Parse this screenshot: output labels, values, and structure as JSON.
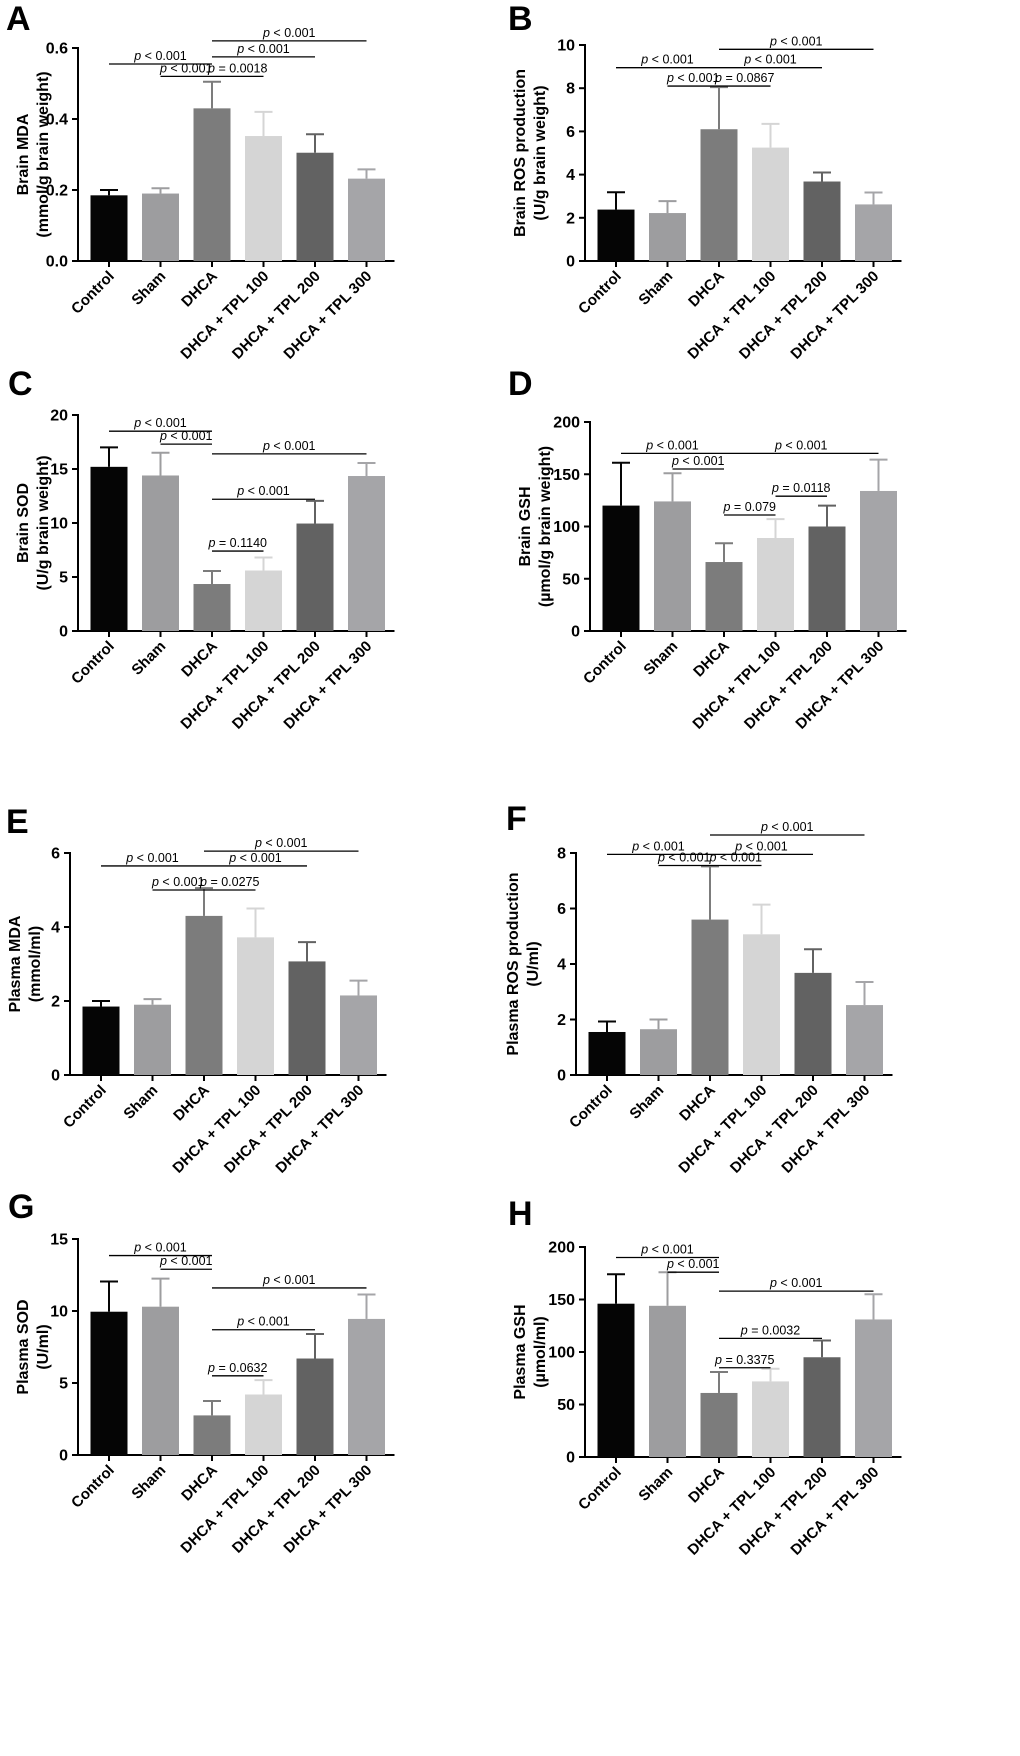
{
  "categories": [
    "Control",
    "Sham",
    "DHCA",
    "DHCA + TPL 100",
    "DHCA + TPL 200",
    "DHCA + TPL 300"
  ],
  "colors": [
    "#050505",
    "#9d9d9f",
    "#7c7c7c",
    "#d5d5d5",
    "#626262",
    "#a5a5a8"
  ],
  "chart_data": [
    {
      "id": "A",
      "panel": "A",
      "type": "bar",
      "ylabel_lines": [
        "Brain MDA",
        "(mmol/g brain weight)"
      ],
      "ylim": [
        0,
        0.6
      ],
      "ticks": [
        0.0,
        0.2,
        0.4,
        0.6
      ],
      "tick_labels": [
        "0.0",
        "0.2",
        "0.4",
        "0.6"
      ],
      "values": [
        0.185,
        0.19,
        0.43,
        0.352,
        0.305,
        0.232
      ],
      "errors": [
        0.015,
        0.015,
        0.075,
        0.068,
        0.052,
        0.026
      ],
      "annotations": [
        {
          "from": 0,
          "to": 2,
          "y": 0.555,
          "text": "< 0.001"
        },
        {
          "from": 1,
          "to": 2,
          "y": 0.52,
          "text": "< 0.001"
        },
        {
          "from": 2,
          "to": 5,
          "y": 0.62,
          "text": "< 0.001"
        },
        {
          "from": 2,
          "to": 4,
          "y": 0.575,
          "text": "< 0.001"
        },
        {
          "from": 2,
          "to": 3,
          "y": 0.52,
          "text": "= 0.0018"
        }
      ]
    },
    {
      "id": "B",
      "panel": "B",
      "type": "bar",
      "ylabel_lines": [
        "Brain ROS production",
        "(U/g brain weight)"
      ],
      "ylim": [
        0,
        10
      ],
      "ticks": [
        0,
        2,
        4,
        6,
        8,
        10
      ],
      "tick_labels": [
        "0",
        "2",
        "4",
        "6",
        "8",
        "10"
      ],
      "values": [
        2.38,
        2.22,
        6.1,
        5.25,
        3.68,
        2.62
      ],
      "errors": [
        0.8,
        0.55,
        1.95,
        1.1,
        0.42,
        0.55
      ],
      "annotations": [
        {
          "from": 0,
          "to": 2,
          "y": 8.95,
          "text": "< 0.001"
        },
        {
          "from": 1,
          "to": 2,
          "y": 8.1,
          "text": "< 0.001"
        },
        {
          "from": 2,
          "to": 5,
          "y": 9.8,
          "text": "< 0.001"
        },
        {
          "from": 2,
          "to": 4,
          "y": 8.95,
          "text": "< 0.001"
        },
        {
          "from": 2,
          "to": 3,
          "y": 8.1,
          "text": "= 0.0867"
        }
      ]
    },
    {
      "id": "C",
      "panel": "C",
      "type": "bar",
      "ylabel_lines": [
        "Brain SOD",
        "(U/g brain weight)"
      ],
      "ylim": [
        0,
        20
      ],
      "ticks": [
        0,
        5,
        10,
        15,
        20
      ],
      "tick_labels": [
        "0",
        "5",
        "10",
        "15",
        "20"
      ],
      "values": [
        15.2,
        14.4,
        4.35,
        5.6,
        9.95,
        14.35
      ],
      "errors": [
        1.8,
        2.1,
        1.2,
        1.2,
        2.1,
        1.2
      ],
      "annotations": [
        {
          "from": 0,
          "to": 2,
          "y": 18.5,
          "text": "< 0.001"
        },
        {
          "from": 1,
          "to": 2,
          "y": 17.3,
          "text": "< 0.001"
        },
        {
          "from": 2,
          "to": 5,
          "y": 16.4,
          "text": "< 0.001"
        },
        {
          "from": 2,
          "to": 4,
          "y": 12.2,
          "text": "< 0.001"
        },
        {
          "from": 2,
          "to": 3,
          "y": 7.4,
          "text": "= 0.1140"
        }
      ]
    },
    {
      "id": "D",
      "panel": "D",
      "type": "bar",
      "ylabel_lines": [
        "Brain GSH",
        "(µmol/g brain weight)"
      ],
      "ylim": [
        0,
        200
      ],
      "ticks": [
        0,
        50,
        100,
        150,
        200
      ],
      "tick_labels": [
        "0",
        "50",
        "100",
        "150",
        "200"
      ],
      "values": [
        120,
        124,
        66,
        89,
        100,
        134
      ],
      "errors": [
        41,
        27,
        18,
        18,
        20,
        30
      ],
      "annotations": [
        {
          "from": 0,
          "to": 2,
          "y": 170,
          "text": "< 0.001"
        },
        {
          "from": 1,
          "to": 2,
          "y": 155,
          "text": "< 0.001"
        },
        {
          "from": 2,
          "to": 5,
          "y": 170,
          "text": "< 0.001"
        },
        {
          "from": 3,
          "to": 4,
          "y": 129,
          "text": "= 0.0118"
        },
        {
          "from": 2,
          "to": 3,
          "y": 111,
          "text": "= 0.079"
        }
      ]
    },
    {
      "id": "E",
      "panel": "E",
      "type": "bar",
      "ylabel_lines": [
        "Plasma MDA",
        "(mmol/ml)"
      ],
      "ylim": [
        0,
        6
      ],
      "ticks": [
        0,
        2,
        4,
        6
      ],
      "tick_labels": [
        "0",
        "2",
        "4",
        "6"
      ],
      "values": [
        1.85,
        1.9,
        4.3,
        3.72,
        3.07,
        2.15
      ],
      "errors": [
        0.15,
        0.15,
        0.75,
        0.78,
        0.52,
        0.4
      ],
      "annotations": [
        {
          "from": 0,
          "to": 2,
          "y": 5.65,
          "text": "< 0.001"
        },
        {
          "from": 1,
          "to": 2,
          "y": 5.0,
          "text": "< 0.001"
        },
        {
          "from": 2,
          "to": 5,
          "y": 6.05,
          "text": "< 0.001"
        },
        {
          "from": 2,
          "to": 4,
          "y": 5.65,
          "text": "< 0.001"
        },
        {
          "from": 2,
          "to": 3,
          "y": 5.0,
          "text": "= 0.0275"
        }
      ]
    },
    {
      "id": "F",
      "panel": "F",
      "type": "bar",
      "ylabel_lines": [
        "Plasma ROS production",
        "(U/ml)"
      ],
      "ylim": [
        0,
        8
      ],
      "ticks": [
        0,
        2,
        4,
        6,
        8
      ],
      "tick_labels": [
        "0",
        "2",
        "4",
        "6",
        "8"
      ],
      "values": [
        1.55,
        1.65,
        5.6,
        5.07,
        3.68,
        2.52
      ],
      "errors": [
        0.38,
        0.35,
        1.92,
        1.07,
        0.85,
        0.83
      ],
      "annotations": [
        {
          "from": 0,
          "to": 2,
          "y": 7.95,
          "text": "< 0.001"
        },
        {
          "from": 1,
          "to": 2,
          "y": 7.55,
          "text": "< 0.001"
        },
        {
          "from": 2,
          "to": 5,
          "y": 8.65,
          "text": "< 0.001"
        },
        {
          "from": 2,
          "to": 4,
          "y": 7.95,
          "text": "< 0.001"
        },
        {
          "from": 2,
          "to": 3,
          "y": 7.55,
          "text": "< 0.001"
        }
      ]
    },
    {
      "id": "G",
      "panel": "G",
      "type": "bar",
      "ylabel_lines": [
        "Plasma SOD",
        "(U/ml)"
      ],
      "ylim": [
        0,
        15
      ],
      "ticks": [
        0,
        5,
        10,
        15
      ],
      "tick_labels": [
        "0",
        "5",
        "10",
        "15"
      ],
      "values": [
        9.95,
        10.3,
        2.75,
        4.2,
        6.7,
        9.45
      ],
      "errors": [
        2.1,
        1.95,
        1.0,
        1.0,
        1.7,
        1.7
      ],
      "annotations": [
        {
          "from": 0,
          "to": 2,
          "y": 13.85,
          "text": "< 0.001"
        },
        {
          "from": 1,
          "to": 2,
          "y": 12.9,
          "text": "< 0.001"
        },
        {
          "from": 2,
          "to": 5,
          "y": 11.6,
          "text": "< 0.001"
        },
        {
          "from": 2,
          "to": 4,
          "y": 8.7,
          "text": "< 0.001"
        },
        {
          "from": 2,
          "to": 3,
          "y": 5.5,
          "text": "= 0.0632"
        }
      ]
    },
    {
      "id": "H",
      "panel": "H",
      "type": "bar",
      "ylabel_lines": [
        "Plasma GSH",
        "(µmol/ml)"
      ],
      "ylim": [
        0,
        200
      ],
      "ticks": [
        0,
        50,
        100,
        150,
        200
      ],
      "tick_labels": [
        "0",
        "50",
        "100",
        "150",
        "200"
      ],
      "values": [
        146,
        144,
        61,
        72,
        95,
        131
      ],
      "errors": [
        28,
        32,
        20,
        12,
        16,
        24
      ],
      "annotations": [
        {
          "from": 0,
          "to": 2,
          "y": 190,
          "text": "< 0.001"
        },
        {
          "from": 1,
          "to": 2,
          "y": 176,
          "text": "< 0.001"
        },
        {
          "from": 2,
          "to": 5,
          "y": 158,
          "text": "< 0.001"
        },
        {
          "from": 2,
          "to": 4,
          "y": 113,
          "text": "= 0.0032"
        },
        {
          "from": 2,
          "to": 3,
          "y": 85,
          "text": "= 0.3375"
        }
      ]
    }
  ]
}
